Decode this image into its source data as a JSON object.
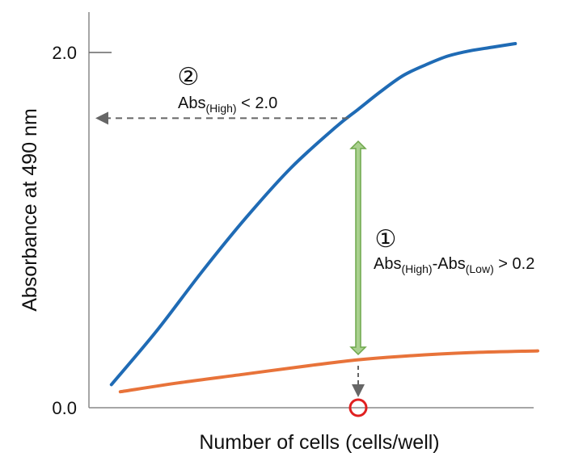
{
  "chart_data": {
    "type": "line",
    "xlabel": "Number of cells (cells/well)",
    "ylabel": "Absorbance at 490 nm",
    "x_ticks_shown": false,
    "y_ticks": [
      {
        "value": 0.0,
        "label": "0.0"
      },
      {
        "value": 2.0,
        "label": "2.0"
      }
    ],
    "ylim": [
      0,
      2.2
    ],
    "xlim": [
      0,
      100
    ],
    "grid": false,
    "legend": "none",
    "series": [
      {
        "color": "#1f6bb5",
        "x": [
          5,
          15,
          25,
          35,
          45,
          55,
          60,
          65,
          70,
          75,
          80,
          85,
          90,
          95
        ],
        "y": [
          0.13,
          0.43,
          0.76,
          1.07,
          1.35,
          1.58,
          1.68,
          1.78,
          1.87,
          1.93,
          1.98,
          2.01,
          2.03,
          2.05
        ]
      },
      {
        "color": "#e8733a",
        "x": [
          7,
          20,
          35,
          50,
          60,
          70,
          85,
          100
        ],
        "y": [
          0.09,
          0.14,
          0.19,
          0.24,
          0.27,
          0.29,
          0.31,
          0.32
        ]
      }
    ],
    "annotations": [
      {
        "id": "1",
        "marker": "①",
        "text_parts": [
          "Abs",
          "(High)",
          "-Abs",
          "(Low)",
          " > 0.2"
        ],
        "color": "#8bc16a",
        "x": 60,
        "y_from": 0.3,
        "y_to": 1.5
      },
      {
        "id": "2",
        "marker": "②",
        "text_parts": [
          "Abs",
          "(High)",
          " < 2.0"
        ],
        "color": "#666666",
        "y": 1.63
      }
    ],
    "highlight": {
      "x": 60,
      "y": 0,
      "color": "#e02020"
    }
  }
}
